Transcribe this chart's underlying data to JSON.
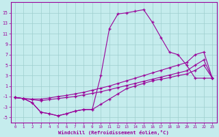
{
  "xlabel": "Windchill (Refroidissement éolien,°C)",
  "background_color": "#c5eced",
  "line_color": "#990099",
  "grid_color": "#9ecece",
  "x": [
    0,
    1,
    2,
    3,
    4,
    5,
    6,
    7,
    8,
    9,
    10,
    11,
    12,
    13,
    14,
    15,
    16,
    17,
    18,
    19,
    20,
    21,
    22,
    23
  ],
  "line1": [
    -1.2,
    -1.4,
    -2.2,
    -4.0,
    -4.3,
    -4.7,
    -4.3,
    -3.8,
    -3.5,
    -3.5,
    3.0,
    12.0,
    14.8,
    15.0,
    15.3,
    15.6,
    13.2,
    10.3,
    7.5,
    7.0,
    5.0,
    2.5,
    2.5,
    2.5
  ],
  "line2": [
    -1.2,
    -1.4,
    -1.5,
    -1.5,
    -1.3,
    -1.0,
    -0.8,
    -0.5,
    -0.2,
    0.2,
    0.6,
    1.0,
    1.5,
    2.0,
    2.5,
    3.0,
    3.5,
    4.0,
    4.5,
    5.0,
    5.5,
    7.0,
    7.5,
    2.5
  ],
  "line3": [
    -1.2,
    -1.4,
    -1.6,
    -1.8,
    -1.6,
    -1.4,
    -1.2,
    -1.0,
    -0.7,
    -0.4,
    -0.1,
    0.3,
    0.7,
    1.1,
    1.5,
    1.9,
    2.3,
    2.7,
    3.1,
    3.5,
    3.9,
    5.0,
    6.0,
    2.5
  ],
  "line4": [
    -1.2,
    -1.4,
    -2.2,
    -4.0,
    -4.3,
    -4.7,
    -4.3,
    -3.8,
    -3.5,
    -3.5,
    -2.5,
    -1.5,
    -0.5,
    0.5,
    1.0,
    1.5,
    2.0,
    2.3,
    2.6,
    3.0,
    3.3,
    4.0,
    5.0,
    2.5
  ],
  "ylim": [
    -6,
    17
  ],
  "yticks": [
    -5,
    -3,
    -1,
    1,
    3,
    5,
    7,
    9,
    11,
    13,
    15
  ],
  "xlim": [
    -0.5,
    23.5
  ],
  "xticks": [
    0,
    1,
    2,
    3,
    4,
    5,
    6,
    7,
    8,
    9,
    10,
    11,
    12,
    13,
    14,
    15,
    16,
    17,
    18,
    19,
    20,
    21,
    22,
    23
  ]
}
